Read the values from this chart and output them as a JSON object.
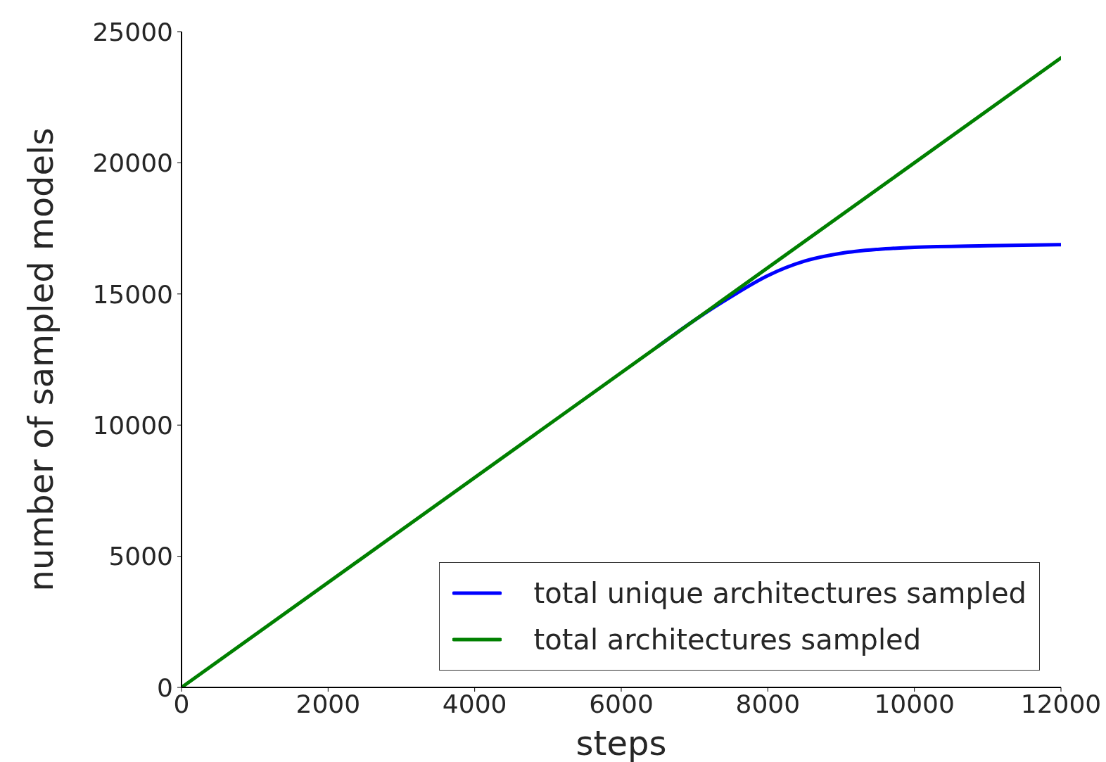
{
  "chart_data": {
    "type": "line",
    "xlabel": "steps",
    "ylabel": "number of sampled models",
    "xlim": [
      0,
      12000
    ],
    "xticks": [
      0,
      2000,
      4000,
      6000,
      8000,
      10000,
      12000
    ],
    "ylim": [
      0,
      25000
    ],
    "yticks": [
      0,
      5000,
      10000,
      15000,
      20000,
      25000
    ],
    "grid": false,
    "legend": "bottom right",
    "marker": "none",
    "line_style": "solid",
    "series": [
      {
        "name": "total unique architectures sampled",
        "color": "#0000ff",
        "x": [
          6500,
          7000,
          7500,
          8000,
          8500,
          9000,
          9500,
          10000,
          11000,
          12000
        ],
        "values": [
          13000,
          14000,
          14900,
          15700,
          16250,
          16550,
          16700,
          16780,
          16840,
          16880
        ]
      },
      {
        "name": "total architectures sampled",
        "color": "#008000",
        "x": [
          0,
          12000
        ],
        "values": [
          0,
          24000
        ]
      }
    ]
  }
}
